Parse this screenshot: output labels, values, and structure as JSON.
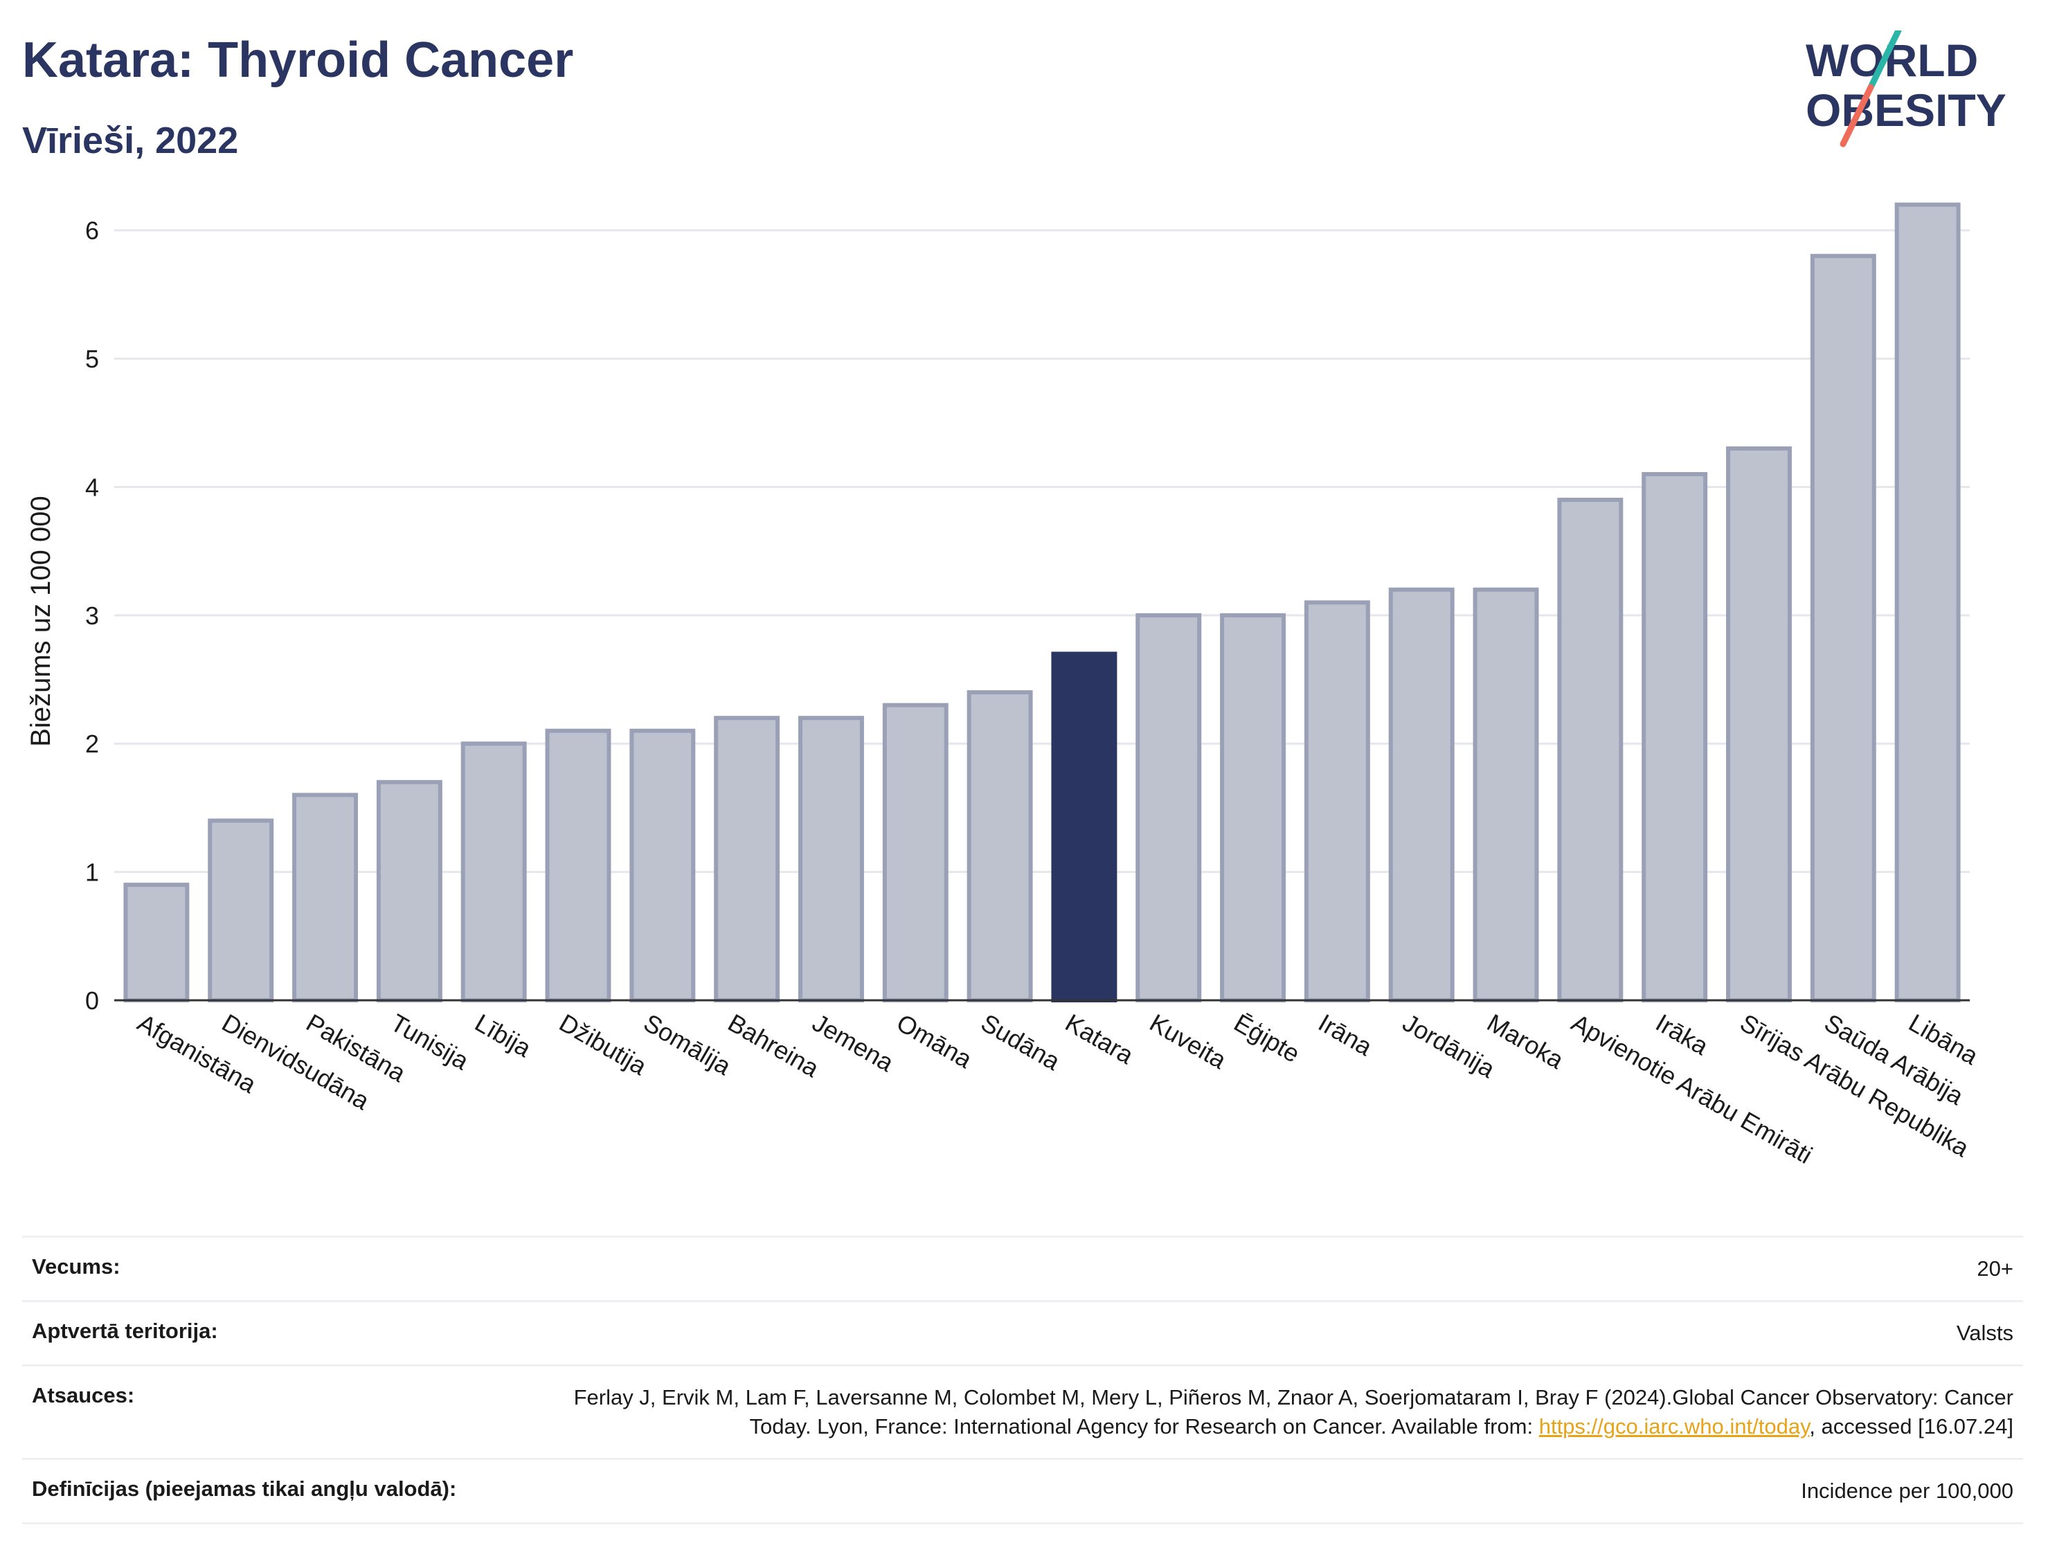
{
  "header": {
    "title": "Katara: Thyroid Cancer",
    "subtitle": "Vīrieši, 2022"
  },
  "logo": {
    "line1": "WORLD",
    "line2": "OBESITY",
    "slash_colors": [
      "#2bb5a8",
      "#ef6c5a"
    ]
  },
  "chart_data": {
    "type": "bar",
    "title": "Katara: Thyroid Cancer",
    "subtitle": "Vīrieši, 2022",
    "ylabel": "Biežums uz 100 000",
    "xlabel": "",
    "ylim": [
      0,
      6.5
    ],
    "yticks": [
      0,
      1,
      2,
      3,
      4,
      5,
      6
    ],
    "grid": true,
    "highlight": "Katara",
    "colors": {
      "bar": "#bec2ce",
      "bar_border": "#9aa0b6",
      "highlight": "#2b3562"
    },
    "categories": [
      "Afganistāna",
      "Dienvidsudāna",
      "Pakistāna",
      "Tunisija",
      "Lībija",
      "Džibutija",
      "Somālija",
      "Bahreina",
      "Jemena",
      "Omāna",
      "Sudāna",
      "Katara",
      "Kuveita",
      "Ēģipte",
      "Irāna",
      "Jordānija",
      "Maroka",
      "Apvienotie Arābu Emirāti",
      "Irāka",
      "Sīrijas Arābu Republika",
      "Saūda Arābija",
      "Libāna"
    ],
    "values": [
      0.9,
      1.4,
      1.6,
      1.7,
      2.0,
      2.1,
      2.1,
      2.2,
      2.2,
      2.3,
      2.4,
      2.7,
      3.0,
      3.0,
      3.1,
      3.2,
      3.2,
      3.9,
      4.1,
      4.3,
      5.8,
      6.2
    ]
  },
  "meta": {
    "age_label": "Vecums:",
    "age_value": "20+",
    "coverage_label": "Aptvertā teritorija:",
    "coverage_value": "Valsts",
    "references_label": "Atsauces:",
    "references_text_1": "Ferlay J, Ervik M, Lam F, Laversanne M, Colombet M, Mery L, Piñeros M, Znaor A, Soerjomataram I, Bray F (2024).Global Cancer Observatory: Cancer Today. Lyon, France: International Agency for Research on Cancer. Available from: ",
    "references_link": "https://gco.iarc.who.int/today",
    "references_text_2": ", accessed [16.07.24]",
    "definitions_label": "Definīcijas (pieejamas tikai angļu valodā):",
    "definitions_value": "Incidence per 100,000"
  }
}
